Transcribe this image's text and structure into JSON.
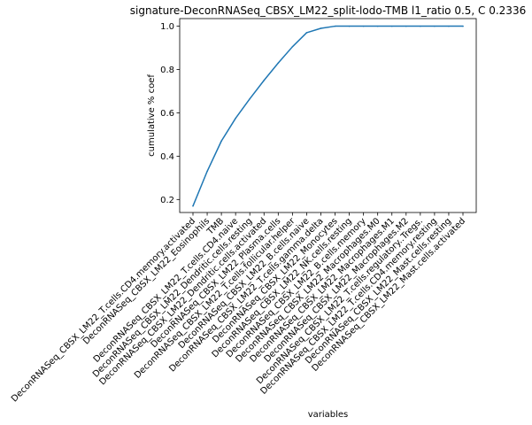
{
  "chart_data": {
    "type": "line",
    "title": "signature-DeconRNASeq_CBSX_LM22_split-lodo-TMB l1_ratio 0.5, C 0.2336",
    "xlabel": "variables",
    "ylabel": "cumulative % coef",
    "grid": false,
    "legend": "none",
    "line_color": "#1f77b4",
    "ylim": [
      0.14,
      1.035
    ],
    "yticks": [
      0.2,
      0.4,
      0.6,
      0.8,
      1.0
    ],
    "ytick_labels": [
      "0.2",
      "0.4",
      "0.6",
      "0.8",
      "1.0"
    ],
    "categories": [
      "DeconRNASeq_CBSX_LM22_T.cells.CD4.memory.activated",
      "DeconRNASeq_CBSX_LM22_Eosinophils",
      "TMB",
      "DeconRNASeq_CBSX_LM22_T.cells.CD4.naive",
      "DeconRNASeq_CBSX_LM22_Dendritic.cells.resting",
      "DeconRNASeq_CBSX_LM22_Dendritic.cells.activated",
      "DeconRNASeq_CBSX_LM22_Plasma.cells",
      "DeconRNASeq_CBSX_LM22_T.cells.follicular.helper",
      "DeconRNASeq_CBSX_LM22_B.cells.naive",
      "DeconRNASeq_CBSX_LM22_T.cells.gamma.delta",
      "DeconRNASeq_CBSX_LM22_Monocytes",
      "DeconRNASeq_CBSX_LM22_NK.cells.resting",
      "DeconRNASeq_CBSX_LM22_B.cells.memory",
      "DeconRNASeq_CBSX_LM22_Macrophages.M0",
      "DeconRNASeq_CBSX_LM22_Macrophages.M1",
      "DeconRNASeq_CBSX_LM22_Macrophages.M2",
      "DeconRNASeq_CBSX_LM22_T.cells.regulatory..Tregs.",
      "DeconRNASeq_CBSX_LM22_T.cells.CD4.memory.resting",
      "DeconRNASeq_CBSX_LM22_Mast.cells.resting",
      "DeconRNASeq_CBSX_LM22_Mast.cells.activated"
    ],
    "values": [
      0.17,
      0.33,
      0.47,
      0.575,
      0.665,
      0.75,
      0.83,
      0.905,
      0.97,
      0.99,
      1.0,
      1.0,
      1.0,
      1.0,
      1.0,
      1.0,
      1.0,
      1.0,
      1.0,
      1.0
    ]
  }
}
